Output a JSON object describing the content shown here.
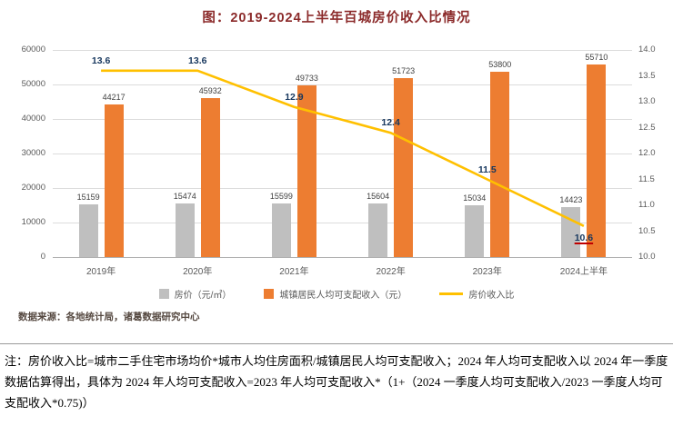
{
  "chart_data": {
    "type": "bar+line",
    "title": "图：2019-2024上半年百城房价收入比情况",
    "categories": [
      "2019年",
      "2020年",
      "2021年",
      "2022年",
      "2023年",
      "2024上半年"
    ],
    "series": [
      {
        "name": "房价（元/㎡）",
        "type": "bar",
        "axis": "left",
        "color": "#bfbfbf",
        "values": [
          15159,
          15474,
          15599,
          15604,
          15034,
          14423
        ]
      },
      {
        "name": "城镇居民人均可支配收入（元）",
        "type": "bar",
        "axis": "left",
        "color": "#ed7d31",
        "values": [
          44217,
          45932,
          49733,
          51723,
          53800,
          55710
        ]
      },
      {
        "name": "房价收入比",
        "type": "line",
        "axis": "right",
        "color": "#ffc000",
        "values": [
          13.6,
          13.6,
          12.9,
          12.4,
          11.5,
          10.6
        ]
      }
    ],
    "left_axis": {
      "min": 0,
      "max": 60000,
      "step": 10000
    },
    "right_axis": {
      "min": 10.0,
      "max": 14.0,
      "step": 0.5
    },
    "grid": true,
    "legend_position": "bottom"
  },
  "theme": {
    "title_color": "#8b2a2a",
    "axis_text_color": "#595959",
    "bar_label_color": "#404040",
    "ratio_label_color": "#17375e",
    "grid_color": "#dcdcdc"
  },
  "source": "数据来源：各地统计局，诸葛数据研究中心",
  "note": "注：房价收入比=城市二手住宅市场均价*城市人均住房面积/城镇居民人均可支配收入；2024 年人均可支配收入以 2024 年一季度数据估算得出，具体为 2024 年人均可支配收入=2023 年人均可支配收入*（1+（2024 一季度人均可支配收入/2023 一季度人均可支配收入*0.75)）"
}
